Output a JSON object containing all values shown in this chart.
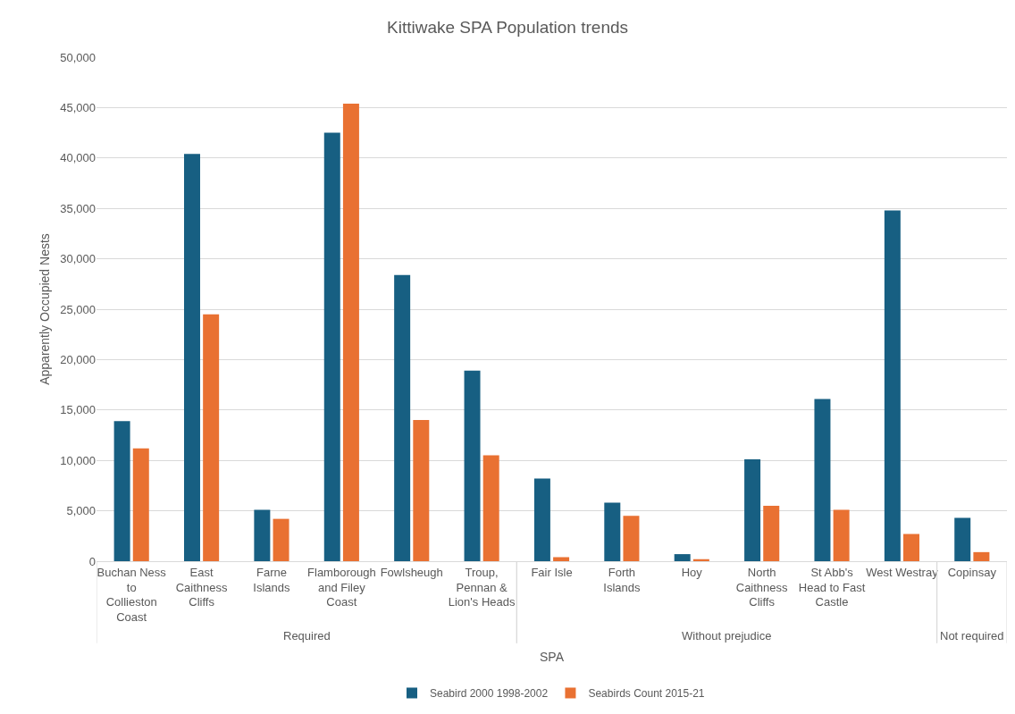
{
  "chart_data": {
    "type": "bar",
    "title": "Kittiwake SPA Population trends",
    "xlabel": "SPA",
    "ylabel": "Apparently Occupied Nests",
    "categories": [
      "Buchan Ness to Collieston Coast",
      "East Caithness Cliffs",
      "Farne Islands",
      "Flamborough and Filey Coast",
      "Fowlsheugh",
      "Troup, Pennan & Lion's Heads",
      "Fair Isle",
      "Forth Islands",
      "Hoy",
      "North Caithness Cliffs",
      "St Abb's Head to Fast Castle",
      "West Westray",
      "Copinsay"
    ],
    "series": [
      {
        "name": "Seabird 2000 1998-2002",
        "color": "#175f82",
        "values": [
          13900,
          40400,
          5100,
          42500,
          28400,
          18900,
          8200,
          5800,
          700,
          10100,
          16100,
          34800,
          4300
        ]
      },
      {
        "name": "Seabirds Count 2015-21",
        "color": "#e97132",
        "values": [
          11200,
          24500,
          4200,
          45400,
          14000,
          10500,
          400,
          4500,
          200,
          5500,
          5100,
          2700,
          900
        ]
      }
    ],
    "annotations": [
      "Required",
      "Without prejudice",
      "Not required"
    ],
    "ylim": [
      0,
      50000
    ],
    "yticks": [
      {
        "value": 0,
        "label": "0"
      },
      {
        "value": 5000,
        "label": "5,000"
      },
      {
        "value": 10000,
        "label": "10,000"
      },
      {
        "value": 15000,
        "label": "15,000"
      },
      {
        "value": 20000,
        "label": "20,000"
      },
      {
        "value": 25000,
        "label": "25,000"
      },
      {
        "value": 30000,
        "label": "30,000"
      },
      {
        "value": 35000,
        "label": "35,000"
      },
      {
        "value": 40000,
        "label": "40,000"
      },
      {
        "value": 45000,
        "label": "45,000"
      },
      {
        "value": 50000,
        "label": "50,000"
      }
    ],
    "grid": "y",
    "legend": "bottom"
  }
}
